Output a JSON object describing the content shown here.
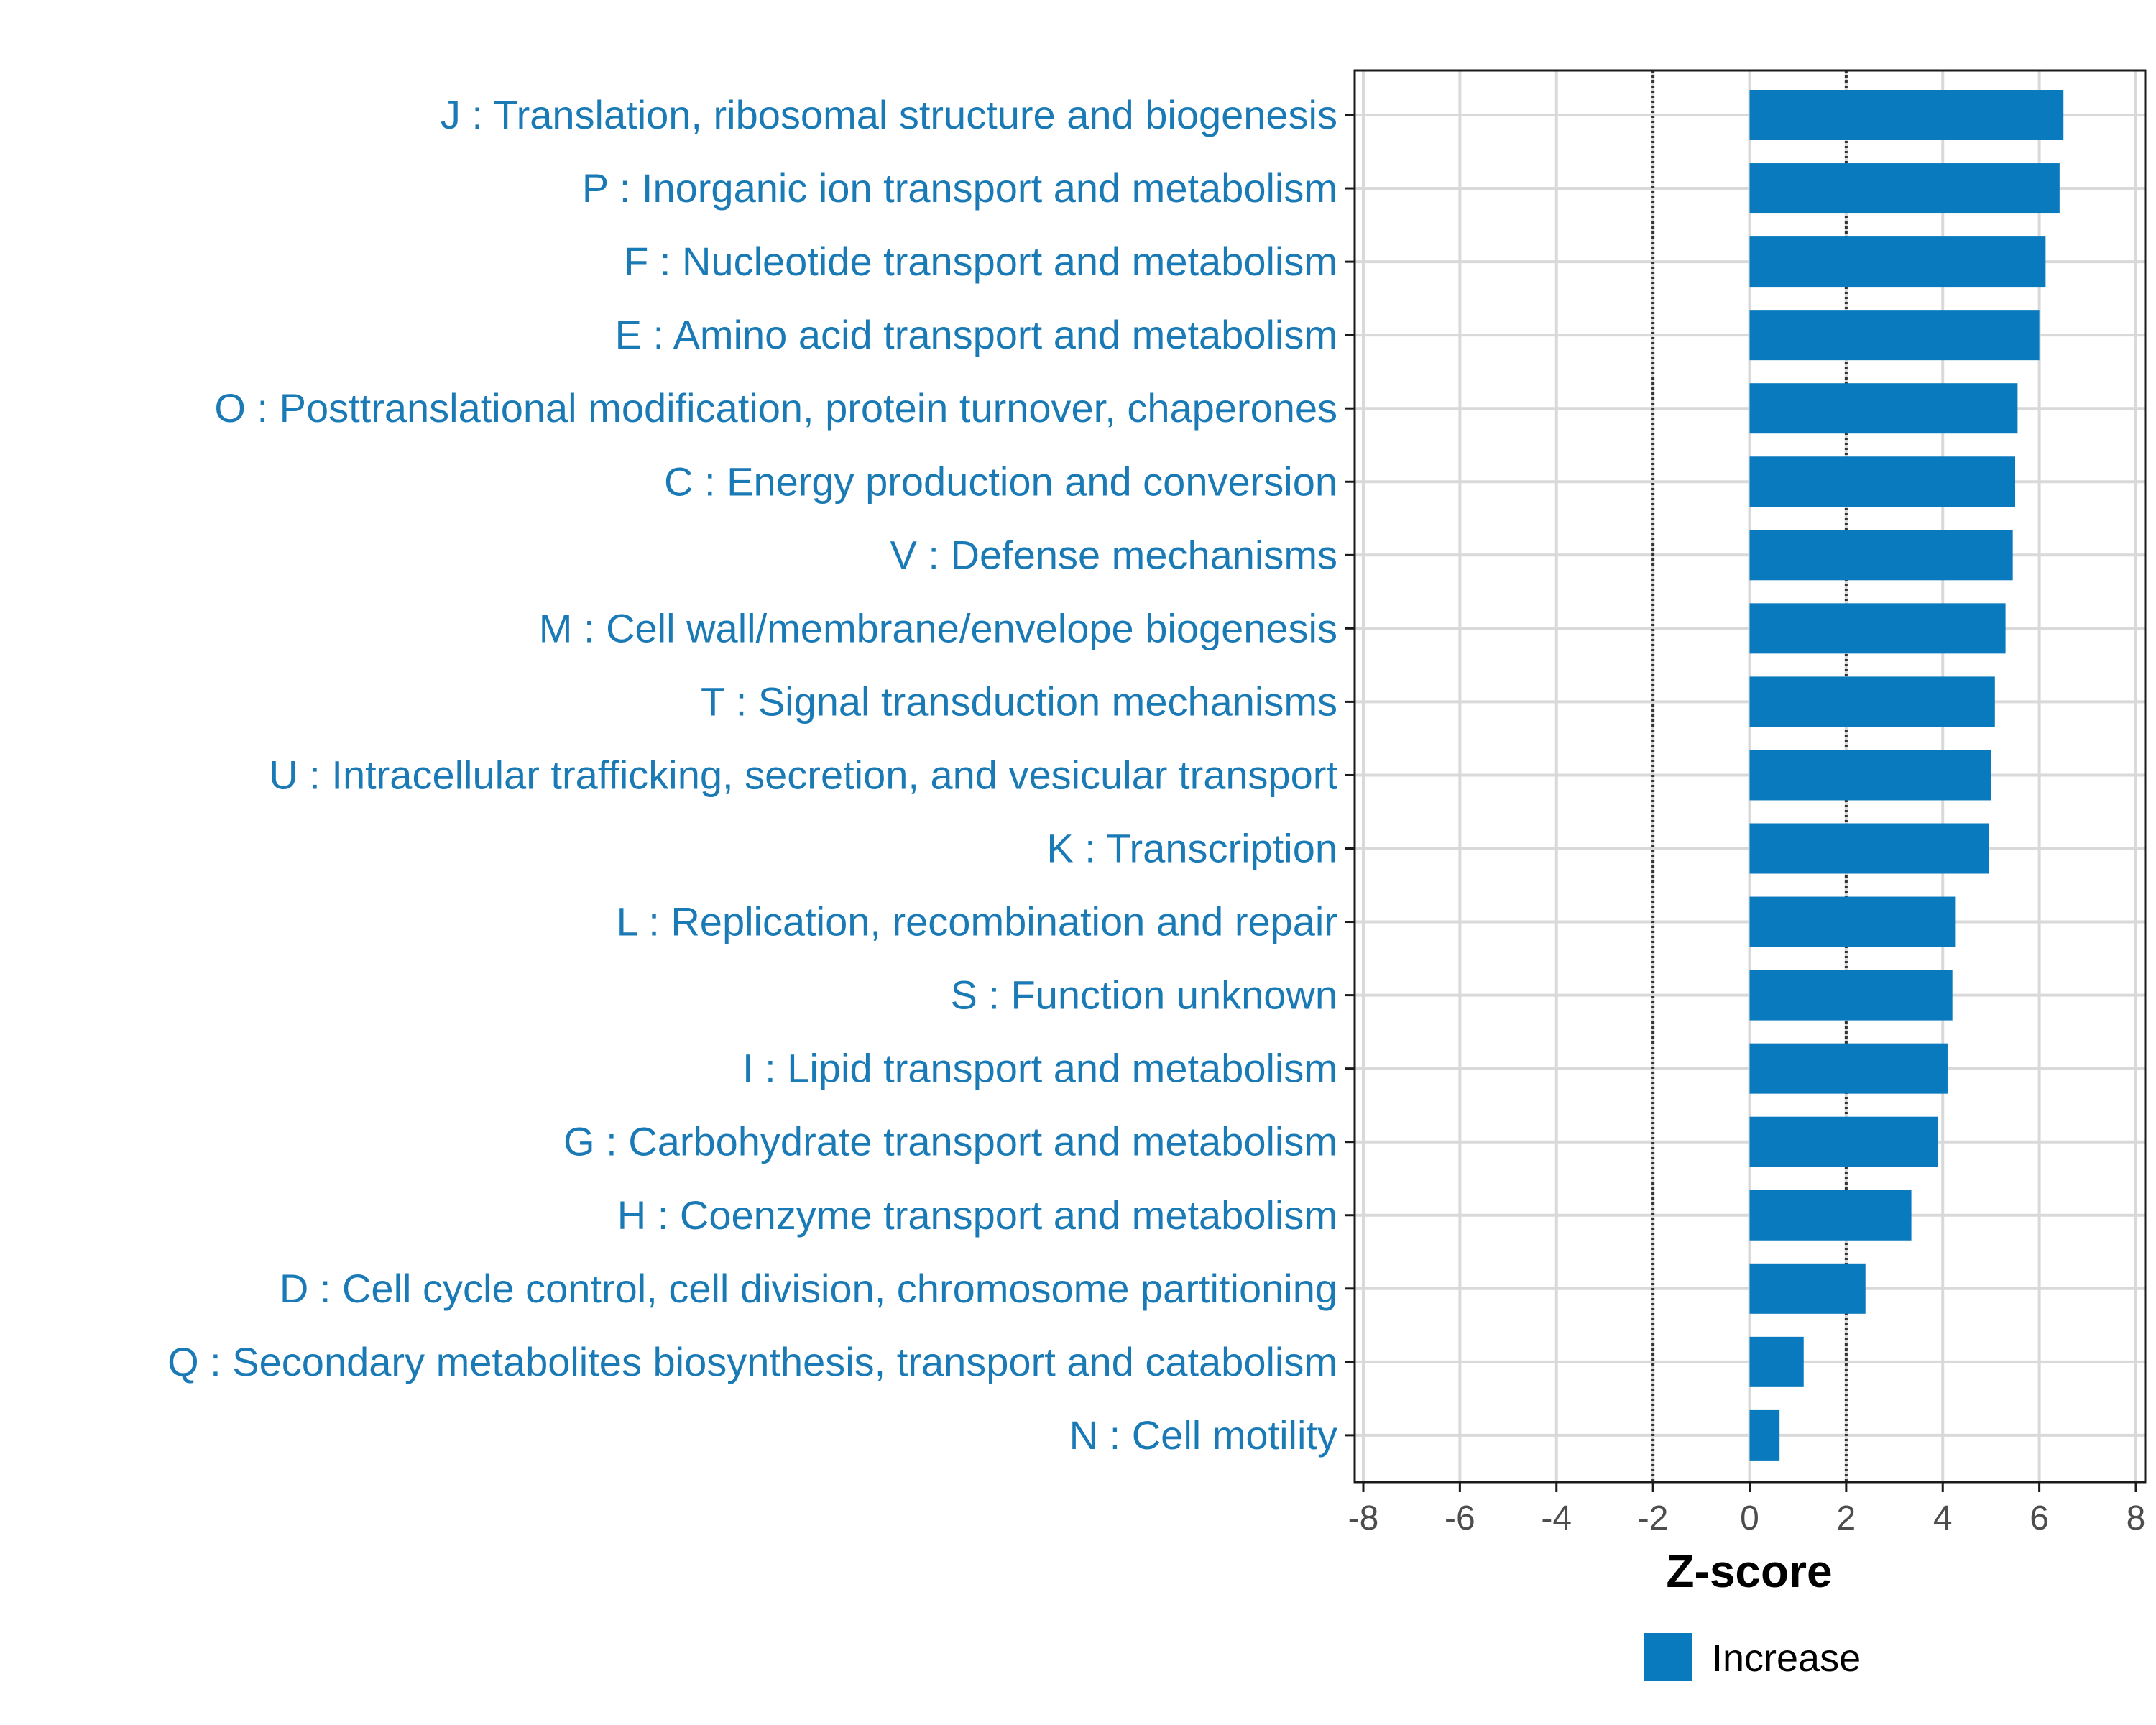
{
  "chart_data": {
    "type": "bar",
    "orientation": "horizontal",
    "xlabel": "Z-score",
    "xlim": [
      -8,
      8
    ],
    "xticks": [
      -8,
      -6,
      -4,
      -2,
      0,
      2,
      4,
      6,
      8
    ],
    "tick_labels": [
      "-8",
      "-6",
      "-4",
      "-2",
      "0",
      "2",
      "4",
      "6",
      "8"
    ],
    "reference_lines": [
      -2,
      2
    ],
    "grid": true,
    "categories": [
      "J : Translation, ribosomal structure and biogenesis",
      "P : Inorganic ion transport and metabolism",
      "F : Nucleotide transport and metabolism",
      "E : Amino acid transport and metabolism",
      "O : Posttranslational modification, protein turnover, chaperones",
      "C : Energy production and conversion",
      "V : Defense mechanisms",
      "M : Cell wall/membrane/envelope biogenesis",
      "T : Signal transduction mechanisms",
      "U : Intracellular trafficking, secretion, and vesicular transport",
      "K : Transcription",
      "L : Replication, recombination and repair",
      "S : Function unknown",
      "I : Lipid transport and metabolism",
      "G : Carbohydrate transport and metabolism",
      "H : Coenzyme transport and metabolism",
      "D : Cell cycle control, cell division, chromosome partitioning",
      "Q : Secondary metabolites biosynthesis, transport and catabolism",
      "N : Cell motility"
    ],
    "series": [
      {
        "name": "Increase",
        "color": "#0a7abf",
        "values": [
          6.5,
          6.42,
          6.13,
          6.0,
          5.55,
          5.5,
          5.45,
          5.3,
          5.08,
          5.0,
          4.95,
          4.27,
          4.2,
          4.1,
          3.9,
          3.35,
          2.4,
          1.12,
          0.62
        ]
      }
    ],
    "legend": {
      "position": "bottom",
      "entries": [
        "Increase"
      ]
    }
  },
  "colors": {
    "bar": "#0a7abf",
    "label_text": "#1a7ab5",
    "grid": "#d9d9d9",
    "frame": "#1a1a1a",
    "ref_line": "#333333"
  }
}
